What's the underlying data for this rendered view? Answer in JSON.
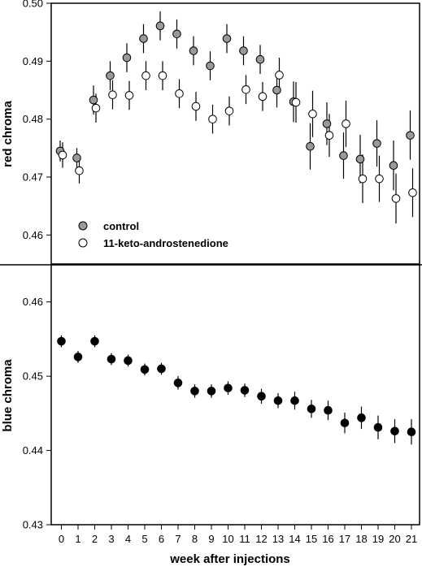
{
  "chart_data": [
    {
      "type": "scatter",
      "panel": "top",
      "ylabel": "red chroma",
      "ylim": [
        0.455,
        0.5
      ],
      "yticks": [
        "0.46",
        "0.47",
        "0.48",
        "0.49",
        "0.50"
      ],
      "legend": {
        "placement": "bottom-left"
      },
      "series": [
        {
          "name": "control",
          "marker_fill": "#999999",
          "points": [
            {
              "x": 0,
              "y": 0.4745,
              "lo": 0.4727,
              "hi": 0.4763
            },
            {
              "x": 1,
              "y": 0.4733,
              "lo": 0.4715,
              "hi": 0.475
            },
            {
              "x": 2,
              "y": 0.4833,
              "lo": 0.4808,
              "hi": 0.4858
            },
            {
              "x": 3,
              "y": 0.4875,
              "lo": 0.485,
              "hi": 0.49
            },
            {
              "x": 4,
              "y": 0.4906,
              "lo": 0.4881,
              "hi": 0.4931
            },
            {
              "x": 5,
              "y": 0.4939,
              "lo": 0.4914,
              "hi": 0.4964
            },
            {
              "x": 6,
              "y": 0.4961,
              "lo": 0.4936,
              "hi": 0.4986
            },
            {
              "x": 7,
              "y": 0.4947,
              "lo": 0.4922,
              "hi": 0.4972
            },
            {
              "x": 8,
              "y": 0.4918,
              "lo": 0.4893,
              "hi": 0.4943
            },
            {
              "x": 9,
              "y": 0.4892,
              "lo": 0.4867,
              "hi": 0.4917
            },
            {
              "x": 10,
              "y": 0.4939,
              "lo": 0.4914,
              "hi": 0.4964
            },
            {
              "x": 11,
              "y": 0.4918,
              "lo": 0.4893,
              "hi": 0.4943
            },
            {
              "x": 12,
              "y": 0.4903,
              "lo": 0.4878,
              "hi": 0.4928
            },
            {
              "x": 13,
              "y": 0.485,
              "lo": 0.482,
              "hi": 0.488
            },
            {
              "x": 14,
              "y": 0.483,
              "lo": 0.4795,
              "hi": 0.4865
            },
            {
              "x": 15,
              "y": 0.4753,
              "lo": 0.4713,
              "hi": 0.4793
            },
            {
              "x": 16,
              "y": 0.4792,
              "lo": 0.4755,
              "hi": 0.4829
            },
            {
              "x": 17,
              "y": 0.4737,
              "lo": 0.4697,
              "hi": 0.4777
            },
            {
              "x": 18,
              "y": 0.4731,
              "lo": 0.4689,
              "hi": 0.4773
            },
            {
              "x": 19,
              "y": 0.4758,
              "lo": 0.4718,
              "hi": 0.4798
            },
            {
              "x": 20,
              "y": 0.472,
              "lo": 0.4677,
              "hi": 0.4763
            },
            {
              "x": 21,
              "y": 0.4772,
              "lo": 0.473,
              "hi": 0.4815
            }
          ]
        },
        {
          "name": "11-keto-androstenedione",
          "marker_fill": "#ffffff",
          "points": [
            {
              "x": 0,
              "y": 0.4738,
              "lo": 0.4716,
              "hi": 0.476
            },
            {
              "x": 1,
              "y": 0.4711,
              "lo": 0.4689,
              "hi": 0.4733
            },
            {
              "x": 2,
              "y": 0.4819,
              "lo": 0.4794,
              "hi": 0.4844
            },
            {
              "x": 3,
              "y": 0.4842,
              "lo": 0.4817,
              "hi": 0.4867
            },
            {
              "x": 4,
              "y": 0.4841,
              "lo": 0.4816,
              "hi": 0.4866
            },
            {
              "x": 5,
              "y": 0.4875,
              "lo": 0.485,
              "hi": 0.49
            },
            {
              "x": 6,
              "y": 0.4875,
              "lo": 0.485,
              "hi": 0.49
            },
            {
              "x": 7,
              "y": 0.4844,
              "lo": 0.4819,
              "hi": 0.4869
            },
            {
              "x": 8,
              "y": 0.4822,
              "lo": 0.4797,
              "hi": 0.4847
            },
            {
              "x": 9,
              "y": 0.48,
              "lo": 0.4775,
              "hi": 0.4825
            },
            {
              "x": 10,
              "y": 0.4814,
              "lo": 0.4789,
              "hi": 0.4839
            },
            {
              "x": 11,
              "y": 0.4851,
              "lo": 0.4826,
              "hi": 0.4876
            },
            {
              "x": 12,
              "y": 0.4839,
              "lo": 0.4814,
              "hi": 0.4864
            },
            {
              "x": 13,
              "y": 0.4876,
              "lo": 0.4846,
              "hi": 0.4906
            },
            {
              "x": 14,
              "y": 0.4829,
              "lo": 0.4794,
              "hi": 0.4864
            },
            {
              "x": 15,
              "y": 0.4809,
              "lo": 0.4769,
              "hi": 0.4849
            },
            {
              "x": 16,
              "y": 0.4772,
              "lo": 0.4735,
              "hi": 0.4809
            },
            {
              "x": 17,
              "y": 0.4792,
              "lo": 0.4752,
              "hi": 0.4832
            },
            {
              "x": 18,
              "y": 0.4697,
              "lo": 0.4655,
              "hi": 0.4739
            },
            {
              "x": 19,
              "y": 0.4697,
              "lo": 0.4657,
              "hi": 0.4737
            },
            {
              "x": 20,
              "y": 0.4663,
              "lo": 0.462,
              "hi": 0.4706
            },
            {
              "x": 21,
              "y": 0.4673,
              "lo": 0.4631,
              "hi": 0.4715
            }
          ]
        }
      ]
    },
    {
      "type": "scatter",
      "panel": "bottom",
      "xlabel": "week after injections",
      "ylabel": "blue chroma",
      "ylim": [
        0.43,
        0.465
      ],
      "yticks": [
        "0.43",
        "0.44",
        "0.45",
        "0.46"
      ],
      "xticks": [
        "0",
        "1",
        "2",
        "3",
        "4",
        "5",
        "6",
        "7",
        "8",
        "9",
        "10",
        "11",
        "12",
        "13",
        "14",
        "15",
        "16",
        "17",
        "18",
        "19",
        "20",
        "21"
      ],
      "series": [
        {
          "marker_fill": "#000000",
          "points": [
            {
              "x": 0,
              "y": 0.4547,
              "lo": 0.4539,
              "hi": 0.4555
            },
            {
              "x": 1,
              "y": 0.4526,
              "lo": 0.4518,
              "hi": 0.4534
            },
            {
              "x": 2,
              "y": 0.4547,
              "lo": 0.4539,
              "hi": 0.4555
            },
            {
              "x": 3,
              "y": 0.4523,
              "lo": 0.4515,
              "hi": 0.4531
            },
            {
              "x": 4,
              "y": 0.4521,
              "lo": 0.4513,
              "hi": 0.4529
            },
            {
              "x": 5,
              "y": 0.4509,
              "lo": 0.4501,
              "hi": 0.4517
            },
            {
              "x": 6,
              "y": 0.451,
              "lo": 0.4502,
              "hi": 0.4518
            },
            {
              "x": 7,
              "y": 0.4491,
              "lo": 0.4482,
              "hi": 0.45
            },
            {
              "x": 8,
              "y": 0.448,
              "lo": 0.4471,
              "hi": 0.4489
            },
            {
              "x": 9,
              "y": 0.448,
              "lo": 0.4471,
              "hi": 0.4489
            },
            {
              "x": 10,
              "y": 0.4484,
              "lo": 0.4475,
              "hi": 0.4493
            },
            {
              "x": 11,
              "y": 0.4481,
              "lo": 0.4472,
              "hi": 0.449
            },
            {
              "x": 12,
              "y": 0.4473,
              "lo": 0.4463,
              "hi": 0.4483
            },
            {
              "x": 13,
              "y": 0.4467,
              "lo": 0.4457,
              "hi": 0.4477
            },
            {
              "x": 14,
              "y": 0.4467,
              "lo": 0.4455,
              "hi": 0.4479
            },
            {
              "x": 15,
              "y": 0.4456,
              "lo": 0.4444,
              "hi": 0.4468
            },
            {
              "x": 16,
              "y": 0.4454,
              "lo": 0.4441,
              "hi": 0.4467
            },
            {
              "x": 17,
              "y": 0.4437,
              "lo": 0.4423,
              "hi": 0.4451
            },
            {
              "x": 18,
              "y": 0.4444,
              "lo": 0.4429,
              "hi": 0.4459
            },
            {
              "x": 19,
              "y": 0.4431,
              "lo": 0.4415,
              "hi": 0.4447
            },
            {
              "x": 20,
              "y": 0.4426,
              "lo": 0.441,
              "hi": 0.4442
            },
            {
              "x": 21,
              "y": 0.4425,
              "lo": 0.4408,
              "hi": 0.4442
            }
          ]
        }
      ]
    }
  ]
}
